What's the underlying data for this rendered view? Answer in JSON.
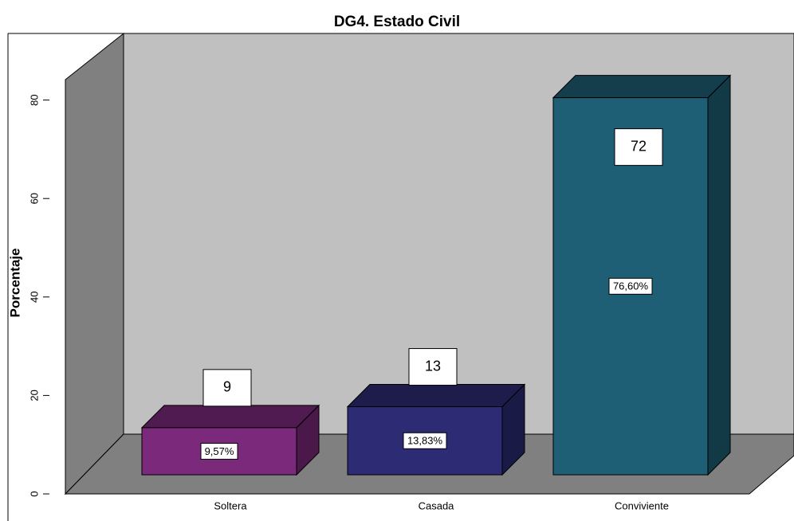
{
  "chart_data": {
    "type": "bar3d",
    "title": "DG4. Estado Civil",
    "y_label": "Porcentaje",
    "categories": [
      "Soltera",
      "Casada",
      "Conviviente"
    ],
    "values": [
      9.57,
      13.83,
      76.6
    ],
    "value_labels": [
      "9,57%",
      "13,83%",
      "76,60%"
    ],
    "counts": [
      9,
      13,
      72
    ],
    "colors": [
      "#7b2a7b",
      "#2c2b74",
      "#1e5f75"
    ],
    "ylim": [
      0,
      84
    ],
    "yticks": [
      0,
      20,
      40,
      60,
      80
    ]
  }
}
